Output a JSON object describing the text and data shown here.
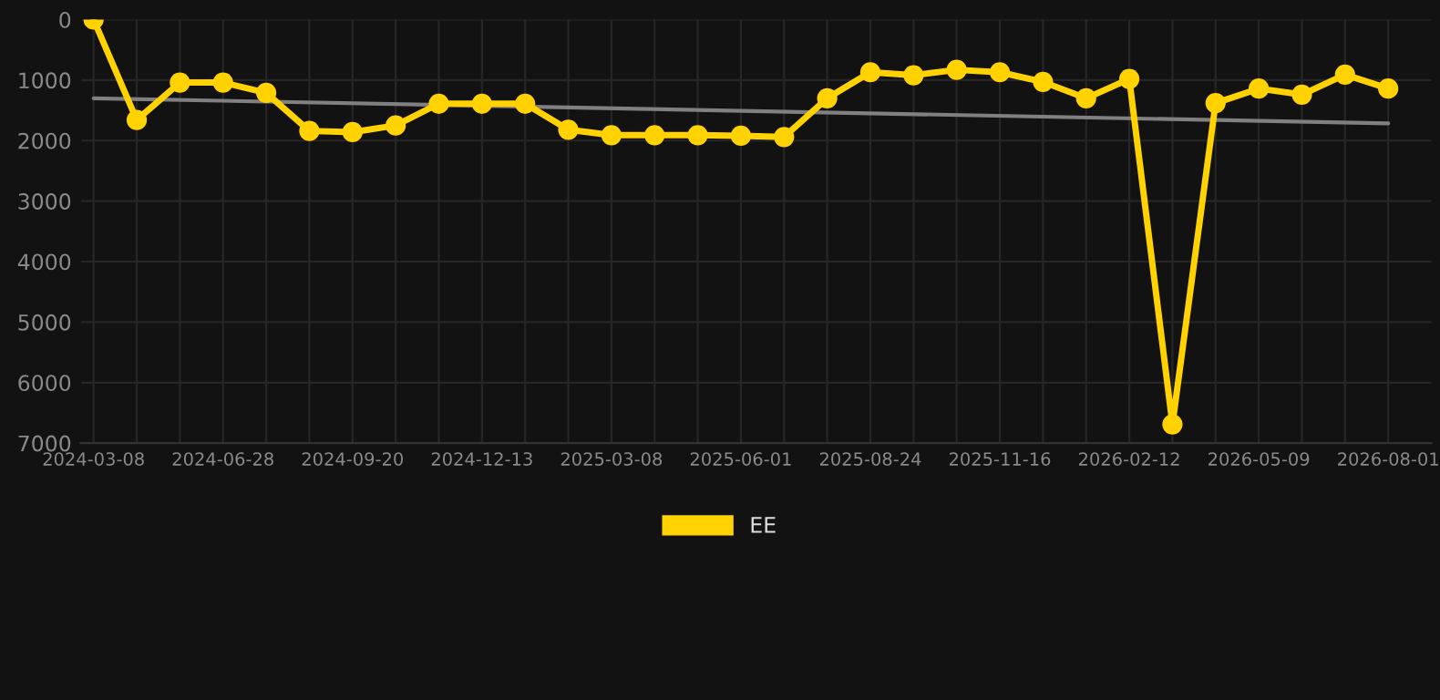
{
  "chart_data": {
    "type": "line",
    "categories": [
      "2024-03-08",
      null,
      null,
      "2024-06-28",
      null,
      null,
      "2024-09-20",
      null,
      null,
      "2024-12-13",
      null,
      null,
      "2025-03-08",
      null,
      null,
      "2025-06-01",
      null,
      null,
      "2025-08-24",
      null,
      null,
      "2025-11-16",
      null,
      null,
      "2026-02-12",
      null,
      null,
      "2026-05-09",
      null,
      null,
      "2026-08-01"
    ],
    "series": [
      {
        "name": "EE",
        "color": "#ffd200",
        "marker": "circle",
        "values": [
          0,
          1660,
          1040,
          1040,
          1210,
          1840,
          1860,
          1750,
          1390,
          1390,
          1390,
          1820,
          1910,
          1910,
          1910,
          1920,
          1940,
          1300,
          870,
          920,
          830,
          870,
          1030,
          1300,
          980,
          6690,
          1380,
          1140,
          1240,
          910,
          1140
        ]
      },
      {
        "color": "#808080",
        "marker": "none",
        "values": [
          1300,
          null,
          null,
          null,
          null,
          null,
          null,
          null,
          null,
          null,
          null,
          null,
          null,
          null,
          null,
          null,
          null,
          null,
          null,
          null,
          null,
          null,
          null,
          null,
          null,
          null,
          null,
          null,
          null,
          null,
          1715
        ]
      }
    ],
    "ylim": [
      7000,
      0
    ],
    "yticks": [
      0,
      1000,
      2000,
      3000,
      4000,
      5000,
      6000,
      7000
    ],
    "grid": true,
    "legend": "bottom",
    "line_style": "solid"
  }
}
